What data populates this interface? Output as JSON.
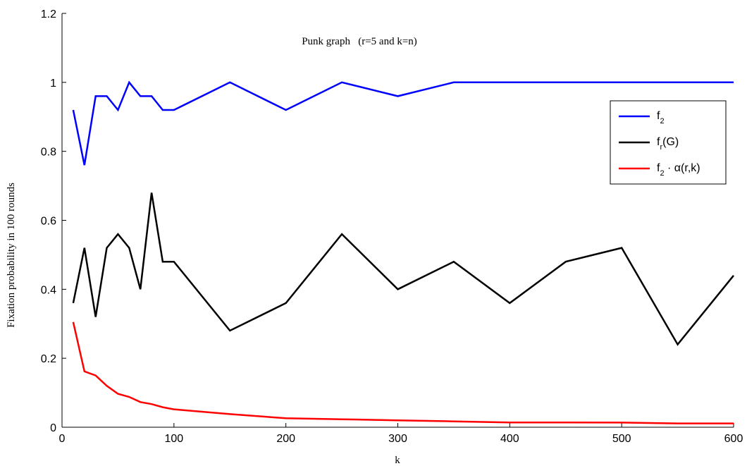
{
  "chart_data": {
    "type": "line",
    "title": "Punk graph   (r=5 and k=n)",
    "xlabel": "k",
    "ylabel": "Fixation probability in 100 rounds",
    "xlim": [
      0,
      600
    ],
    "ylim": [
      0,
      1.2
    ],
    "xticks": [
      0,
      100,
      200,
      300,
      400,
      500,
      600
    ],
    "yticks": [
      0,
      0.2,
      0.4,
      0.6,
      0.8,
      1,
      1.2
    ],
    "xtick_labels": [
      "0",
      "100",
      "200",
      "300",
      "400",
      "500",
      "600"
    ],
    "ytick_labels": [
      "0",
      "0.2",
      "0.4",
      "0.6",
      "0.8",
      "1",
      "1.2"
    ],
    "grid": false,
    "legend_position": "right",
    "x": [
      10,
      20,
      30,
      40,
      50,
      60,
      70,
      80,
      90,
      100,
      150,
      200,
      250,
      300,
      350,
      400,
      450,
      500,
      550,
      600
    ],
    "series": [
      {
        "name": "f2",
        "legend_main": "f",
        "legend_sub": "2",
        "legend_rest": "",
        "color": "#0000ff",
        "values": [
          0.92,
          0.76,
          0.96,
          0.96,
          0.92,
          1.0,
          0.96,
          0.96,
          0.92,
          0.92,
          1.0,
          0.92,
          1.0,
          0.96,
          1.0,
          1.0,
          1.0,
          1.0,
          1.0,
          1.0
        ]
      },
      {
        "name": "fr(G)",
        "legend_main": "f",
        "legend_sub": "r",
        "legend_rest": "(G)",
        "color": "#000000",
        "values": [
          0.36,
          0.52,
          0.32,
          0.52,
          0.56,
          0.52,
          0.4,
          0.68,
          0.48,
          0.48,
          0.28,
          0.36,
          0.56,
          0.4,
          0.48,
          0.36,
          0.48,
          0.52,
          0.24,
          0.44
        ]
      },
      {
        "name": "f2 · α(r,k)",
        "legend_main": "f",
        "legend_sub": "2",
        "legend_rest": " · α(r,k)",
        "color": "#ff0000",
        "values": [
          0.305,
          0.162,
          0.15,
          0.12,
          0.097,
          0.088,
          0.073,
          0.067,
          0.058,
          0.052,
          0.038,
          0.026,
          0.023,
          0.02,
          0.017,
          0.014,
          0.0138,
          0.0135,
          0.011,
          0.011
        ]
      }
    ]
  }
}
